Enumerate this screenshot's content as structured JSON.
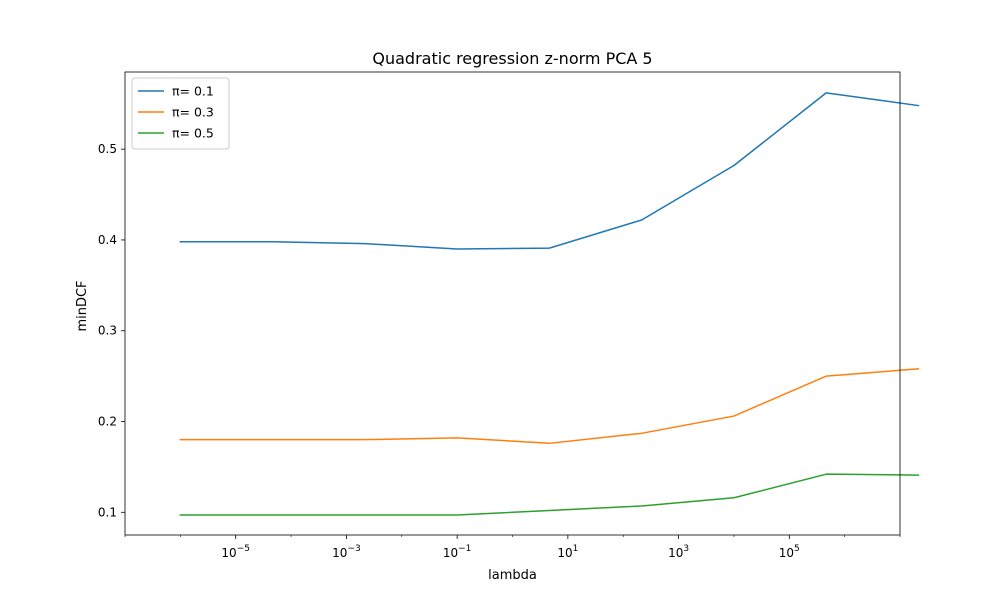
{
  "chart_data": {
    "type": "line",
    "title": "Quadratic regression z-norm PCA 5",
    "xlabel": "lambda",
    "ylabel": "minDCF",
    "x_scale": "log",
    "xlim": [
      1e-07,
      10000000.0
    ],
    "ylim": [
      0.075,
      0.585
    ],
    "x_ticks": [
      {
        "value": 1e-05,
        "base": "10",
        "exp": "−5"
      },
      {
        "value": 0.001,
        "base": "10",
        "exp": "−3"
      },
      {
        "value": 0.1,
        "base": "10",
        "exp": "−1"
      },
      {
        "value": 10,
        "base": "10",
        "exp": "1"
      },
      {
        "value": 1000,
        "base": "10",
        "exp": "3"
      },
      {
        "value": 100000,
        "base": "10",
        "exp": "5"
      }
    ],
    "y_ticks": [
      {
        "value": 0.1,
        "label": "0.1"
      },
      {
        "value": 0.2,
        "label": "0.2"
      },
      {
        "value": 0.3,
        "label": "0.3"
      },
      {
        "value": 0.4,
        "label": "0.4"
      },
      {
        "value": 0.5,
        "label": "0.5"
      }
    ],
    "x": [
      1e-06,
      4.64e-05,
      0.00215,
      0.1,
      4.64,
      215,
      10000,
      464000,
      21500000
    ],
    "grid": false,
    "legend_position": "top-left",
    "series": [
      {
        "name": "π= 0.1",
        "color": "#1f77b4",
        "values": [
          0.398,
          0.398,
          0.396,
          0.39,
          0.391,
          0.422,
          0.482,
          0.562,
          0.548
        ]
      },
      {
        "name": "π= 0.3",
        "color": "#ff7f0e",
        "values": [
          0.18,
          0.18,
          0.18,
          0.182,
          0.176,
          0.187,
          0.206,
          0.25,
          0.258
        ]
      },
      {
        "name": "π= 0.5",
        "color": "#2ca02c",
        "values": [
          0.097,
          0.097,
          0.097,
          0.097,
          0.102,
          0.107,
          0.116,
          0.142,
          0.141
        ]
      }
    ]
  }
}
